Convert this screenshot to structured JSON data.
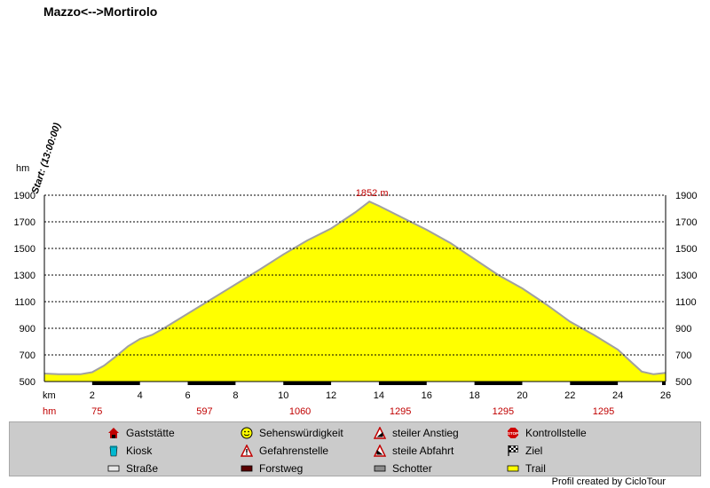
{
  "chart_data": {
    "type": "area",
    "title": "Mazzo<-->Mortirolo",
    "start_label": "Start: (13:00:00)",
    "ylabel": "hm",
    "xlabel": "km",
    "elev_label": "hm",
    "ylim": [
      500,
      1900
    ],
    "yticks": [
      500,
      700,
      900,
      1100,
      1300,
      1500,
      1700,
      1900
    ],
    "xlim": [
      0,
      26
    ],
    "xticks": [
      2,
      4,
      6,
      8,
      10,
      12,
      14,
      16,
      18,
      20,
      22,
      24,
      26
    ],
    "elevation_markers": [
      {
        "km": 2.2,
        "label": "75"
      },
      {
        "km": 6.7,
        "label": "597"
      },
      {
        "km": 10.7,
        "label": "1060"
      },
      {
        "km": 14.9,
        "label": "1295"
      },
      {
        "km": 19.2,
        "label": "1295"
      },
      {
        "km": 23.4,
        "label": "1295"
      }
    ],
    "peak": {
      "km": 13.6,
      "value": 1852,
      "label": "1852 m"
    },
    "profile": [
      [
        0,
        560
      ],
      [
        0.6,
        555
      ],
      [
        1.5,
        555
      ],
      [
        2.0,
        570
      ],
      [
        2.5,
        620
      ],
      [
        3.0,
        690
      ],
      [
        3.5,
        765
      ],
      [
        4.0,
        820
      ],
      [
        4.5,
        850
      ],
      [
        5.0,
        900
      ],
      [
        6.0,
        1010
      ],
      [
        7.0,
        1120
      ],
      [
        8.0,
        1230
      ],
      [
        9.0,
        1340
      ],
      [
        10.0,
        1455
      ],
      [
        11.0,
        1560
      ],
      [
        12.0,
        1650
      ],
      [
        13.0,
        1770
      ],
      [
        13.6,
        1852
      ],
      [
        14.0,
        1820
      ],
      [
        15.0,
        1730
      ],
      [
        16.0,
        1640
      ],
      [
        17.0,
        1540
      ],
      [
        18.0,
        1420
      ],
      [
        19.0,
        1300
      ],
      [
        20.0,
        1200
      ],
      [
        21.0,
        1080
      ],
      [
        22.0,
        950
      ],
      [
        23.0,
        850
      ],
      [
        24.0,
        740
      ],
      [
        24.6,
        640
      ],
      [
        25.0,
        575
      ],
      [
        25.5,
        555
      ],
      [
        26.0,
        565
      ]
    ],
    "grid": true,
    "fill_color": "#ffff00",
    "line_color": "#a0a0a0",
    "track_color": "#000000",
    "marker_color": "#c00000"
  },
  "legend": {
    "items": [
      {
        "label": "Gaststätte",
        "icon": "house-icon"
      },
      {
        "label": "Sehenswürdigkeit",
        "icon": "smiley-icon"
      },
      {
        "label": "steiler Anstieg",
        "icon": "steep-climb-icon"
      },
      {
        "label": "Kontrollstelle",
        "icon": "stop-sign-icon"
      },
      {
        "label": "Kiosk",
        "icon": "cup-icon"
      },
      {
        "label": "Gefahrenstelle",
        "icon": "warning-icon"
      },
      {
        "label": "steile Abfahrt",
        "icon": "steep-descent-icon"
      },
      {
        "label": "Ziel",
        "icon": "checkered-flag-icon"
      },
      {
        "label": "Straße",
        "icon": "road-swatch-icon"
      },
      {
        "label": "Forstweg",
        "icon": "forest-road-swatch-icon"
      },
      {
        "label": "Schotter",
        "icon": "gravel-swatch-icon"
      },
      {
        "label": "Trail",
        "icon": "trail-swatch-icon"
      }
    ]
  },
  "credit": "Profil created by CicloTour"
}
